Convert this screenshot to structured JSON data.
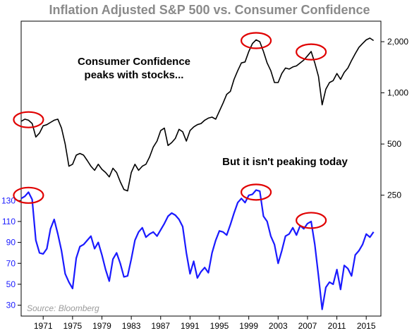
{
  "chart_data": {
    "type": "line",
    "title": "Inflation Adjusted S&P 500 vs. Consumer Confidence",
    "source": "Source: Bloomberg",
    "annotations": [
      "Consumer Confidence",
      "peaks with stocks...",
      "But it isn't peaking today"
    ],
    "x_ticks": [
      "1971",
      "1975",
      "1979",
      "1983",
      "1987",
      "1991",
      "1995",
      "1999",
      "2003",
      "2007",
      "2011",
      "2015"
    ],
    "xlim": [
      1968,
      2017
    ],
    "grid": false,
    "series": [
      {
        "axis": "right-log",
        "color": "#000000",
        "ylim": [
          200,
          2400
        ],
        "y_ticks": [
          {
            "value": 2000,
            "label": "2,000"
          },
          {
            "value": 1000,
            "label": "1,000"
          },
          {
            "value": 500,
            "label": "500"
          },
          {
            "value": 250,
            "label": "250"
          }
        ],
        "points": [
          [
            1968.0,
            680
          ],
          [
            1968.5,
            700
          ],
          [
            1969.0,
            690
          ],
          [
            1969.5,
            660
          ],
          [
            1970.0,
            550
          ],
          [
            1970.5,
            580
          ],
          [
            1971.0,
            640
          ],
          [
            1971.5,
            650
          ],
          [
            1972.0,
            670
          ],
          [
            1972.5,
            690
          ],
          [
            1973.0,
            700
          ],
          [
            1973.5,
            620
          ],
          [
            1974.0,
            500
          ],
          [
            1974.5,
            370
          ],
          [
            1975.0,
            380
          ],
          [
            1975.5,
            430
          ],
          [
            1976.0,
            440
          ],
          [
            1976.5,
            430
          ],
          [
            1977.0,
            400
          ],
          [
            1977.5,
            370
          ],
          [
            1978.0,
            350
          ],
          [
            1978.5,
            380
          ],
          [
            1979.0,
            355
          ],
          [
            1979.5,
            340
          ],
          [
            1980.0,
            320
          ],
          [
            1980.5,
            360
          ],
          [
            1981.0,
            340
          ],
          [
            1981.5,
            300
          ],
          [
            1982.0,
            270
          ],
          [
            1982.5,
            265
          ],
          [
            1983.0,
            340
          ],
          [
            1983.5,
            380
          ],
          [
            1984.0,
            350
          ],
          [
            1984.5,
            370
          ],
          [
            1985.0,
            380
          ],
          [
            1985.5,
            420
          ],
          [
            1986.0,
            480
          ],
          [
            1986.5,
            520
          ],
          [
            1987.0,
            600
          ],
          [
            1987.5,
            620
          ],
          [
            1988.0,
            490
          ],
          [
            1988.5,
            510
          ],
          [
            1989.0,
            540
          ],
          [
            1989.5,
            610
          ],
          [
            1990.0,
            590
          ],
          [
            1990.5,
            520
          ],
          [
            1991.0,
            600
          ],
          [
            1991.5,
            630
          ],
          [
            1992.0,
            650
          ],
          [
            1992.5,
            660
          ],
          [
            1993.0,
            690
          ],
          [
            1993.5,
            710
          ],
          [
            1994.0,
            720
          ],
          [
            1994.5,
            700
          ],
          [
            1995.0,
            780
          ],
          [
            1995.5,
            870
          ],
          [
            1996.0,
            980
          ],
          [
            1996.5,
            1020
          ],
          [
            1997.0,
            1200
          ],
          [
            1997.5,
            1350
          ],
          [
            1998.0,
            1500
          ],
          [
            1998.5,
            1520
          ],
          [
            1999.0,
            1750
          ],
          [
            1999.5,
            1950
          ],
          [
            2000.0,
            2050
          ],
          [
            2000.5,
            2000
          ],
          [
            2001.0,
            1750
          ],
          [
            2001.5,
            1500
          ],
          [
            2002.0,
            1350
          ],
          [
            2002.5,
            1150
          ],
          [
            2003.0,
            1150
          ],
          [
            2003.5,
            1300
          ],
          [
            2004.0,
            1400
          ],
          [
            2004.5,
            1380
          ],
          [
            2005.0,
            1420
          ],
          [
            2005.5,
            1440
          ],
          [
            2006.0,
            1500
          ],
          [
            2006.5,
            1560
          ],
          [
            2007.0,
            1650
          ],
          [
            2007.5,
            1750
          ],
          [
            2008.0,
            1500
          ],
          [
            2008.5,
            1250
          ],
          [
            2009.0,
            850
          ],
          [
            2009.5,
            1050
          ],
          [
            2010.0,
            1150
          ],
          [
            2010.5,
            1180
          ],
          [
            2011.0,
            1300
          ],
          [
            2011.5,
            1200
          ],
          [
            2012.0,
            1320
          ],
          [
            2012.5,
            1400
          ],
          [
            2013.0,
            1550
          ],
          [
            2013.5,
            1700
          ],
          [
            2014.0,
            1850
          ],
          [
            2014.5,
            1950
          ],
          [
            2015.0,
            2050
          ],
          [
            2015.5,
            2100
          ],
          [
            2016.0,
            2030
          ]
        ]
      },
      {
        "axis": "left",
        "color": "#1a1aff",
        "ylim": [
          25,
          145
        ],
        "y_ticks": [
          130,
          110,
          90,
          70,
          50,
          30
        ],
        "points": [
          [
            1968.0,
            132
          ],
          [
            1968.5,
            134
          ],
          [
            1969.0,
            138
          ],
          [
            1969.5,
            131
          ],
          [
            1970.0,
            92
          ],
          [
            1970.5,
            80
          ],
          [
            1971.0,
            79
          ],
          [
            1971.5,
            84
          ],
          [
            1972.0,
            103
          ],
          [
            1972.5,
            112
          ],
          [
            1973.0,
            98
          ],
          [
            1973.5,
            82
          ],
          [
            1974.0,
            60
          ],
          [
            1974.5,
            52
          ],
          [
            1975.0,
            46
          ],
          [
            1975.5,
            75
          ],
          [
            1976.0,
            86
          ],
          [
            1976.5,
            88
          ],
          [
            1977.0,
            92
          ],
          [
            1977.5,
            96
          ],
          [
            1978.0,
            84
          ],
          [
            1978.5,
            90
          ],
          [
            1979.0,
            78
          ],
          [
            1979.5,
            64
          ],
          [
            1980.0,
            53
          ],
          [
            1980.5,
            74
          ],
          [
            1981.0,
            80
          ],
          [
            1981.5,
            70
          ],
          [
            1982.0,
            57
          ],
          [
            1982.5,
            58
          ],
          [
            1983.0,
            74
          ],
          [
            1983.5,
            92
          ],
          [
            1984.0,
            100
          ],
          [
            1984.5,
            104
          ],
          [
            1985.0,
            95
          ],
          [
            1985.5,
            98
          ],
          [
            1986.0,
            100
          ],
          [
            1986.5,
            96
          ],
          [
            1987.0,
            102
          ],
          [
            1987.5,
            108
          ],
          [
            1988.0,
            115
          ],
          [
            1988.5,
            118
          ],
          [
            1989.0,
            116
          ],
          [
            1989.5,
            112
          ],
          [
            1990.0,
            105
          ],
          [
            1990.5,
            80
          ],
          [
            1991.0,
            60
          ],
          [
            1991.5,
            72
          ],
          [
            1992.0,
            56
          ],
          [
            1992.5,
            62
          ],
          [
            1993.0,
            66
          ],
          [
            1993.5,
            61
          ],
          [
            1994.0,
            80
          ],
          [
            1994.5,
            92
          ],
          [
            1995.0,
            101
          ],
          [
            1995.5,
            100
          ],
          [
            1996.0,
            97
          ],
          [
            1996.5,
            107
          ],
          [
            1997.0,
            118
          ],
          [
            1997.5,
            128
          ],
          [
            1998.0,
            132
          ],
          [
            1998.5,
            128
          ],
          [
            1999.0,
            135
          ],
          [
            1999.5,
            136
          ],
          [
            2000.0,
            140
          ],
          [
            2000.5,
            139
          ],
          [
            2001.0,
            115
          ],
          [
            2001.5,
            110
          ],
          [
            2002.0,
            96
          ],
          [
            2002.5,
            88
          ],
          [
            2003.0,
            70
          ],
          [
            2003.5,
            82
          ],
          [
            2004.0,
            96
          ],
          [
            2004.5,
            98
          ],
          [
            2005.0,
            104
          ],
          [
            2005.5,
            97
          ],
          [
            2006.0,
            106
          ],
          [
            2006.5,
            103
          ],
          [
            2007.0,
            108
          ],
          [
            2007.5,
            110
          ],
          [
            2008.0,
            88
          ],
          [
            2008.5,
            58
          ],
          [
            2009.0,
            26
          ],
          [
            2009.5,
            47
          ],
          [
            2010.0,
            52
          ],
          [
            2010.5,
            50
          ],
          [
            2011.0,
            64
          ],
          [
            2011.5,
            45
          ],
          [
            2012.0,
            68
          ],
          [
            2012.5,
            65
          ],
          [
            2013.0,
            58
          ],
          [
            2013.5,
            78
          ],
          [
            2014.0,
            82
          ],
          [
            2014.5,
            88
          ],
          [
            2015.0,
            98
          ],
          [
            2015.5,
            95
          ],
          [
            2016.0,
            100
          ]
        ]
      }
    ],
    "highlights": [
      {
        "series": 0,
        "x": 1969.0,
        "y": 695
      },
      {
        "series": 0,
        "x": 2000.0,
        "y": 2030
      },
      {
        "series": 0,
        "x": 2007.5,
        "y": 1740
      },
      {
        "series": 1,
        "x": 1969.0,
        "y": 135
      },
      {
        "series": 1,
        "x": 2000.0,
        "y": 138
      },
      {
        "series": 1,
        "x": 2007.5,
        "y": 111
      }
    ],
    "colors": {
      "title": "#8a8a8a",
      "right_axis": "#000000",
      "left_axis": "#1a1aff",
      "highlight": "#e00000",
      "source": "#9a9a9a"
    }
  }
}
